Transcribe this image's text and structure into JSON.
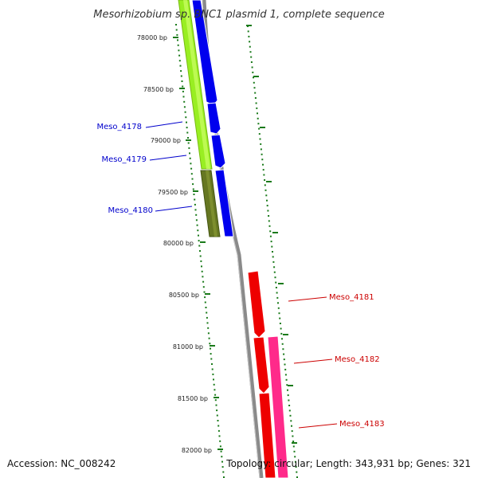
{
  "title": "Mesorhizobium sp. BNC1 plasmid 1, complete sequence",
  "accession": "Accession: NC_008242",
  "summary": "Topology: circular; Length: 343,931 bp; Genes: 321",
  "axis": {
    "unit": "bp",
    "ticks": [
      "78000 bp",
      "78500 bp",
      "79000 bp",
      "79500 bp",
      "80000 bp",
      "80500 bp",
      "81000 bp",
      "81500 bp",
      "82000 bp"
    ]
  },
  "genes": [
    {
      "name": "Meso_4178",
      "color": "#0000cc"
    },
    {
      "name": "Meso_4179",
      "color": "#0000cc"
    },
    {
      "name": "Meso_4180",
      "color": "#0000cc"
    },
    {
      "name": "Meso_4181",
      "color": "#cc0000"
    },
    {
      "name": "Meso_4182",
      "color": "#cc0000"
    },
    {
      "name": "Meso_4183",
      "color": "#cc0000"
    }
  ],
  "colors": {
    "backbone": "#8a8a8a",
    "tick_marks": "#1a7a1a",
    "forward_genes": "#0000ff",
    "reverse_genes": "#ff0000",
    "rna_feature": "#ff2a8a",
    "gc_high": "#99ee22",
    "gc_low": "#667722"
  }
}
